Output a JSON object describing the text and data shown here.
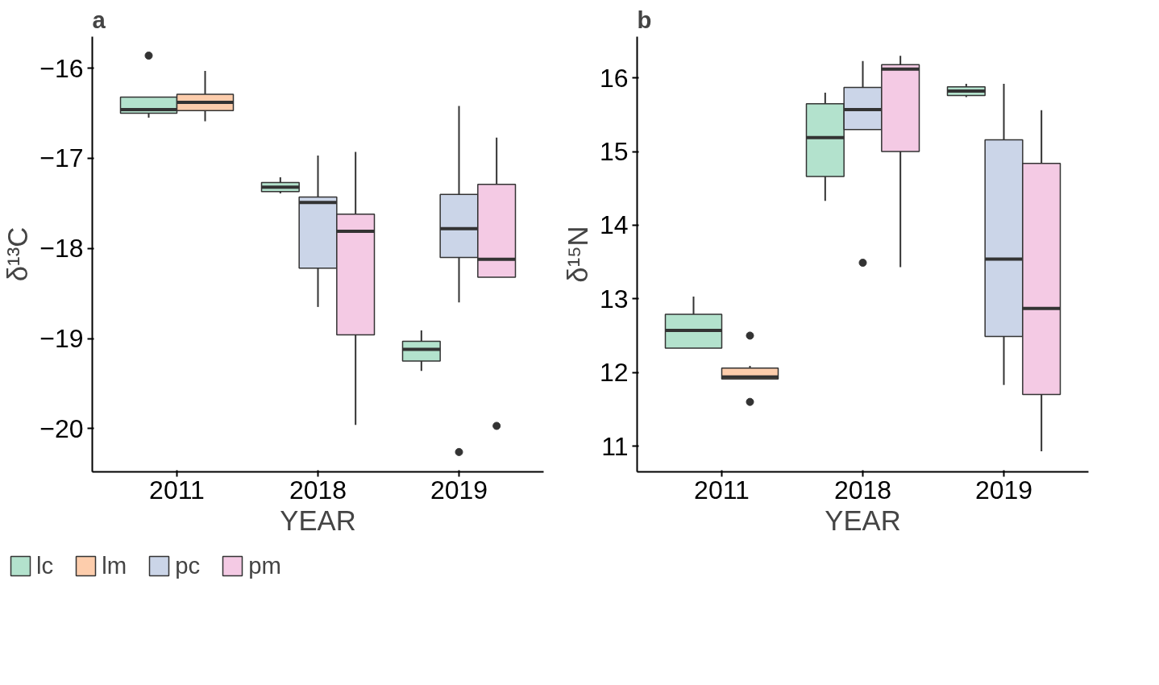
{
  "chart_data": [
    {
      "type": "box",
      "title": "a",
      "xlabel": "YEAR",
      "ylabel": "δ¹³C",
      "categories": [
        "2011",
        "2018",
        "2019"
      ],
      "ylim": [
        -20.48,
        -15.65
      ],
      "yticks": [
        -20,
        -19,
        -18,
        -17,
        -16
      ],
      "grid": false,
      "legend": "bottom",
      "series": [
        {
          "name": "lc",
          "color": "#b3e2cd",
          "boxes": [
            {
              "low": -16.55,
              "q1": -16.5,
              "median": -16.46,
              "q3": -16.32,
              "high": -16.32,
              "outliers": [
                -15.86
              ]
            },
            {
              "low": -17.39,
              "q1": -17.37,
              "median": -17.32,
              "q3": -17.27,
              "high": -17.21
            },
            {
              "low": -19.36,
              "q1": -19.25,
              "median": -19.12,
              "q3": -19.03,
              "high": -18.91
            }
          ]
        },
        {
          "name": "lm",
          "color": "#fdcdac",
          "boxes": [
            {
              "low": -16.59,
              "q1": -16.47,
              "median": -16.38,
              "q3": -16.29,
              "high": -16.03
            },
            null,
            null
          ]
        },
        {
          "name": "pc",
          "color": "#cbd5e8",
          "boxes": [
            null,
            {
              "low": -18.65,
              "q1": -18.22,
              "median": -17.49,
              "q3": -17.43,
              "high": -16.97
            },
            {
              "low": -18.6,
              "q1": -18.1,
              "median": -17.78,
              "q3": -17.4,
              "high": -16.42,
              "outliers": [
                -20.26
              ]
            }
          ]
        },
        {
          "name": "pm",
          "color": "#f4cae4",
          "boxes": [
            null,
            {
              "low": -19.96,
              "q1": -18.96,
              "median": -17.81,
              "q3": -17.62,
              "high": -16.93
            },
            {
              "low": -18.32,
              "q1": -18.32,
              "median": -18.12,
              "q3": -17.29,
              "high": -16.77,
              "outliers": [
                -19.97
              ]
            }
          ]
        }
      ]
    },
    {
      "type": "box",
      "title": "b",
      "xlabel": "YEAR",
      "ylabel": "δ¹⁵N",
      "categories": [
        "2011",
        "2018",
        "2019"
      ],
      "ylim": [
        10.65,
        16.56
      ],
      "yticks": [
        11,
        12,
        13,
        14,
        15,
        16
      ],
      "grid": false,
      "series": [
        {
          "color": "#b3e2cd",
          "boxes": [
            {
              "low": 12.33,
              "q1": 12.33,
              "median": 12.57,
              "q3": 12.79,
              "high": 13.03
            },
            {
              "low": 14.33,
              "q1": 14.66,
              "median": 15.19,
              "q3": 15.65,
              "high": 15.8
            },
            {
              "low": 15.74,
              "q1": 15.76,
              "median": 15.82,
              "q3": 15.88,
              "high": 15.92
            }
          ]
        },
        {
          "color": "#fdcdac",
          "boxes": [
            {
              "low": 11.91,
              "q1": 11.91,
              "median": 11.94,
              "q3": 12.06,
              "high": 12.09,
              "outliers": [
                12.5,
                11.6
              ]
            },
            null,
            null
          ]
        },
        {
          "color": "#cbd5e8",
          "boxes": [
            null,
            {
              "low": 15.3,
              "q1": 15.3,
              "median": 15.57,
              "q3": 15.87,
              "high": 16.23,
              "outliers": [
                13.49
              ]
            },
            {
              "low": 11.83,
              "q1": 12.49,
              "median": 13.54,
              "q3": 15.16,
              "high": 15.92
            }
          ]
        },
        {
          "color": "#f4cae4",
          "boxes": [
            null,
            {
              "low": 13.43,
              "q1": 15.0,
              "median": 16.12,
              "q3": 16.18,
              "high": 16.3
            },
            {
              "low": 10.93,
              "q1": 11.7,
              "median": 12.87,
              "q3": 14.84,
              "high": 15.56
            }
          ]
        }
      ]
    }
  ]
}
